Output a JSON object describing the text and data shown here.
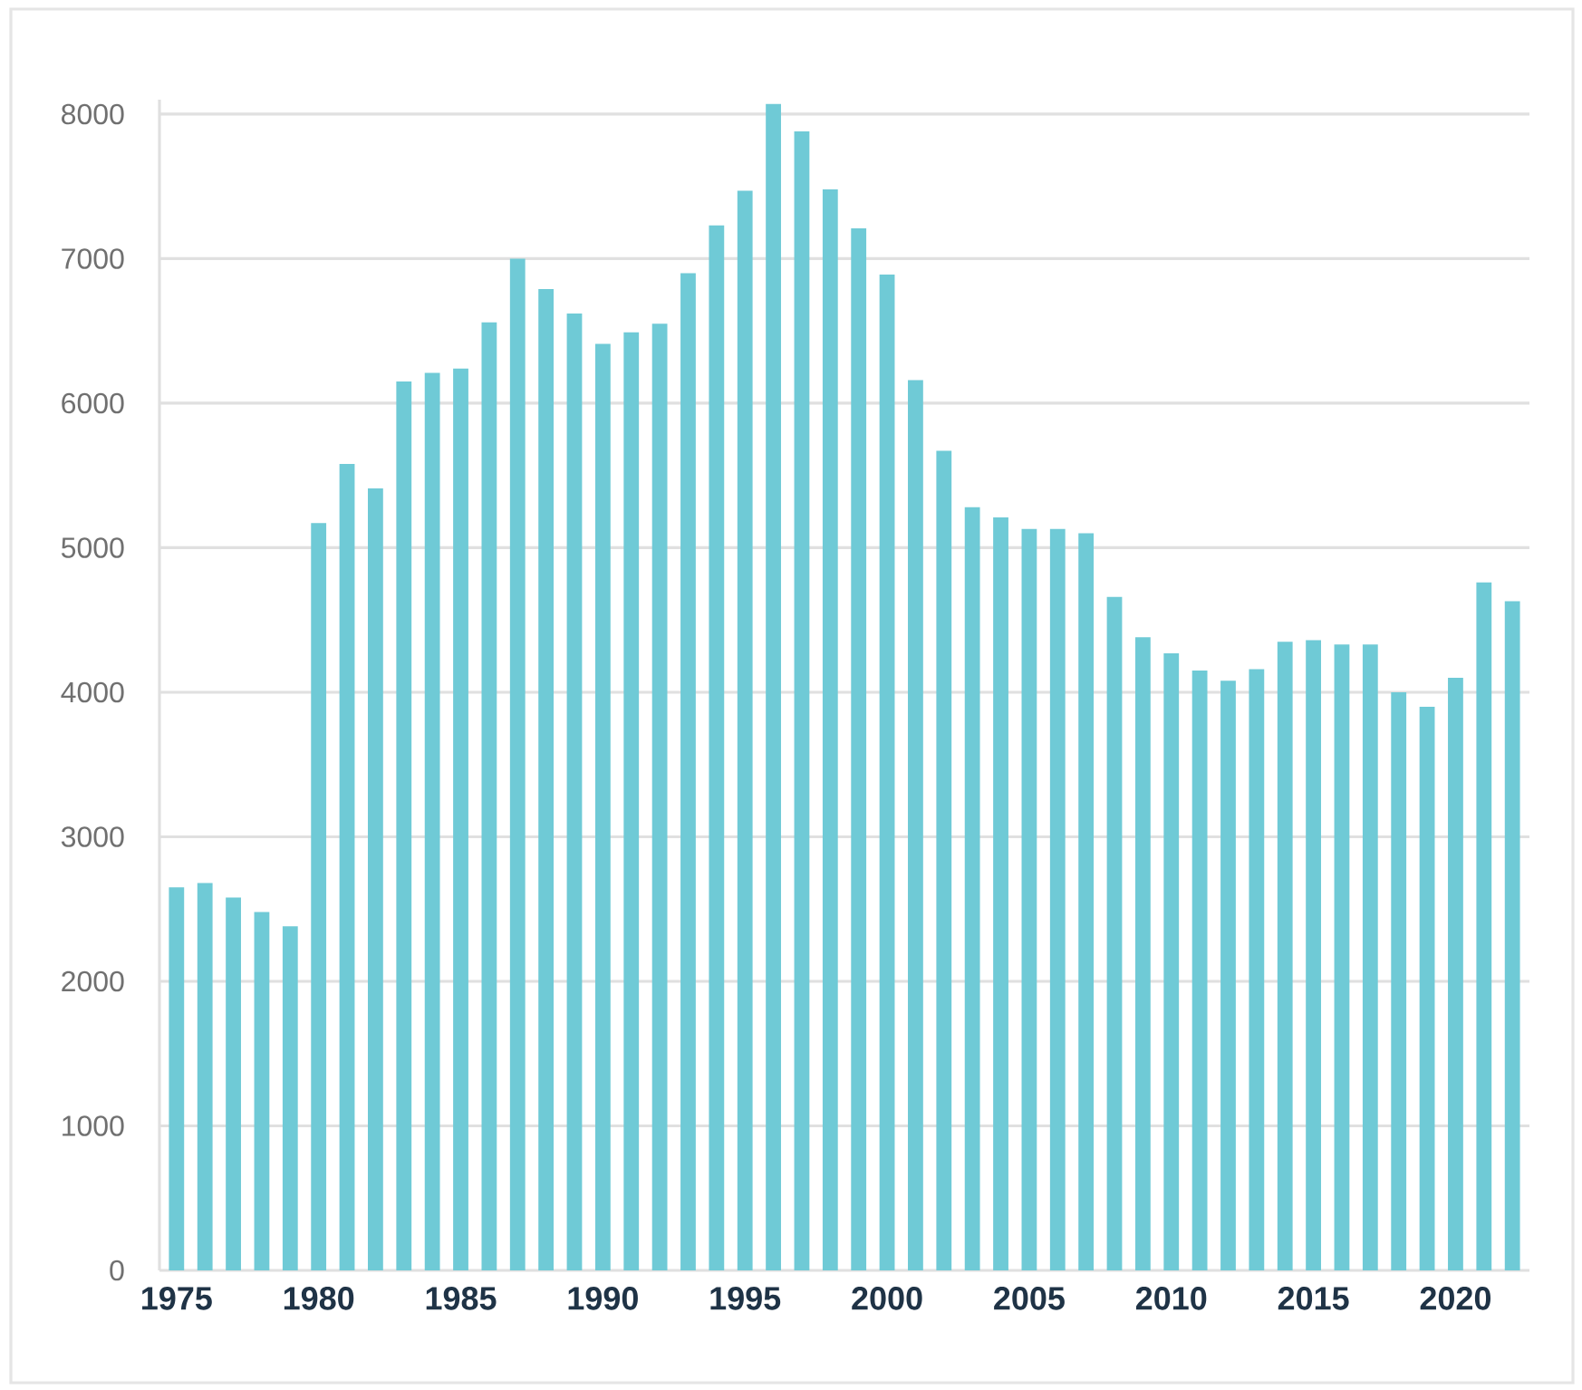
{
  "chart_data": {
    "type": "bar",
    "categories": [
      "1975",
      null,
      null,
      null,
      null,
      "1980",
      null,
      null,
      null,
      null,
      "1985",
      null,
      null,
      null,
      null,
      "1990",
      null,
      null,
      null,
      null,
      "1995",
      null,
      null,
      null,
      null,
      "2000",
      null,
      null,
      null,
      null,
      "2005",
      null,
      null,
      null,
      null,
      "2010",
      null,
      null,
      null,
      null,
      "2015",
      null,
      null,
      null,
      null,
      "2020",
      null,
      null
    ],
    "values": [
      2650,
      2680,
      2580,
      2480,
      2380,
      5170,
      5580,
      5410,
      6150,
      6210,
      6240,
      6560,
      7000,
      6790,
      6620,
      6410,
      6490,
      6550,
      6900,
      7230,
      7470,
      8070,
      7880,
      7480,
      7210,
      6890,
      6160,
      5670,
      5280,
      5210,
      5130,
      5130,
      5100,
      4660,
      4380,
      4270,
      4150,
      4080,
      4160,
      4350,
      4360,
      4330,
      4330,
      4000,
      3900,
      4100,
      4760,
      4630
    ],
    "color": "#6fcad6",
    "ylim": [
      0,
      8100
    ],
    "yticks": [
      0,
      1000,
      2000,
      3000,
      4000,
      5000,
      6000,
      7000,
      8000
    ],
    "grid": "y"
  }
}
